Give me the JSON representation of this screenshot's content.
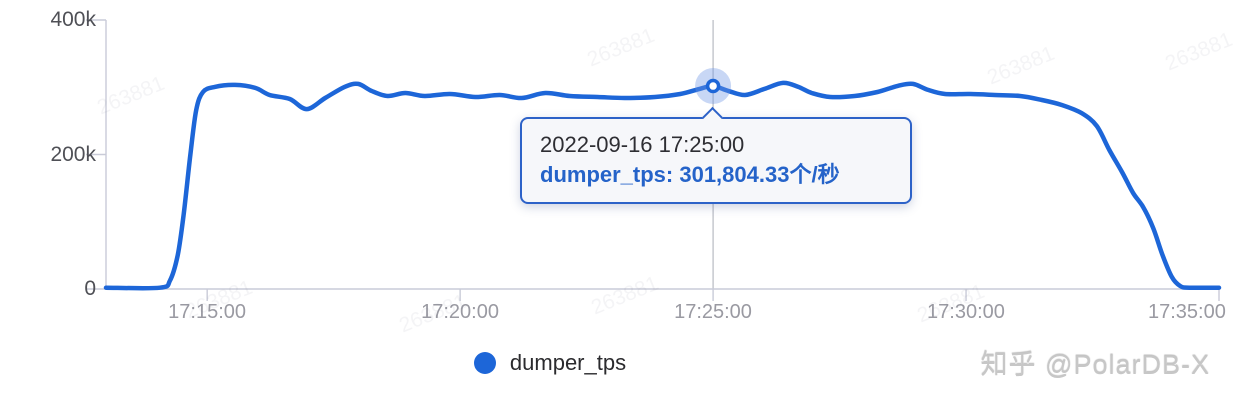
{
  "chart_data": {
    "type": "line",
    "title": "",
    "xlabel": "",
    "ylabel": "",
    "x_range": [
      "17:13:00",
      "17:35:00"
    ],
    "ylim": [
      0,
      400000
    ],
    "grid": false,
    "legend_position": "bottom",
    "x_tick_labels": [
      "17:15:00",
      "17:20:00",
      "17:25:00",
      "17:30:00",
      "17:35:00"
    ],
    "y_ticks": [
      {
        "label": "400k",
        "value": 400000
      },
      {
        "label": "200k",
        "value": 200000
      },
      {
        "label": "0",
        "value": 0
      }
    ],
    "series": [
      {
        "name": "dumper_tps",
        "unit": "个/秒",
        "color": "#1d66d8",
        "points": [
          [
            "17:13:00",
            2000
          ],
          [
            "17:14:04",
            2000
          ],
          [
            "17:14:16",
            13000
          ],
          [
            "17:14:25",
            50000
          ],
          [
            "17:14:32",
            110000
          ],
          [
            "17:14:40",
            199000
          ],
          [
            "17:14:47",
            266000
          ],
          [
            "17:14:55",
            293000
          ],
          [
            "17:15:09",
            300500
          ],
          [
            "17:15:33",
            303500
          ],
          [
            "17:15:57",
            299000
          ],
          [
            "17:16:14",
            288500
          ],
          [
            "17:16:38",
            282500
          ],
          [
            "17:16:58",
            267500
          ],
          [
            "17:17:20",
            284000
          ],
          [
            "17:17:43",
            300500
          ],
          [
            "17:17:59",
            305000
          ],
          [
            "17:18:15",
            294500
          ],
          [
            "17:18:34",
            287000
          ],
          [
            "17:18:55",
            291500
          ],
          [
            "17:19:18",
            287000
          ],
          [
            "17:19:48",
            290000
          ],
          [
            "17:20:18",
            285500
          ],
          [
            "17:20:47",
            288500
          ],
          [
            "17:21:13",
            284000
          ],
          [
            "17:21:41",
            291500
          ],
          [
            "17:22:10",
            287000
          ],
          [
            "17:22:43",
            285500
          ],
          [
            "17:23:15",
            284000
          ],
          [
            "17:23:51",
            285500
          ],
          [
            "17:24:21",
            290000
          ],
          [
            "17:24:44",
            297500
          ],
          [
            "17:25:00",
            301804.33
          ],
          [
            "17:25:18",
            294500
          ],
          [
            "17:25:38",
            288500
          ],
          [
            "17:26:01",
            297500
          ],
          [
            "17:26:23",
            306500
          ],
          [
            "17:26:41",
            300500
          ],
          [
            "17:26:57",
            291500
          ],
          [
            "17:27:19",
            285500
          ],
          [
            "17:27:48",
            287000
          ],
          [
            "17:28:15",
            293000
          ],
          [
            "17:28:39",
            302000
          ],
          [
            "17:28:57",
            305000
          ],
          [
            "17:29:15",
            296000
          ],
          [
            "17:29:35",
            290000
          ],
          [
            "17:30:05",
            290000
          ],
          [
            "17:30:34",
            288500
          ],
          [
            "17:31:04",
            287000
          ],
          [
            "17:31:30",
            281000
          ],
          [
            "17:31:54",
            273500
          ],
          [
            "17:32:17",
            261500
          ],
          [
            "17:32:35",
            242500
          ],
          [
            "17:32:50",
            206500
          ],
          [
            "17:33:05",
            174000
          ],
          [
            "17:33:18",
            143000
          ],
          [
            "17:33:30",
            122000
          ],
          [
            "17:33:42",
            90500
          ],
          [
            "17:33:53",
            50500
          ],
          [
            "17:34:04",
            18000
          ],
          [
            "17:34:14",
            4500
          ],
          [
            "17:34:25",
            2000
          ],
          [
            "17:35:00",
            2000
          ]
        ]
      }
    ]
  },
  "tooltip": {
    "datetime": "2022-09-16 17:25:00",
    "value_line": "dumper_tps: 301,804.33个/秒",
    "series": "dumper_tps",
    "time": "17:25:00",
    "value": 301804.33
  },
  "legend": {
    "label": "dumper_tps"
  },
  "watermarks": {
    "brand": "知乎 @PolarDB-X",
    "stamp": "263881"
  },
  "colors": {
    "line": "#1d66d8",
    "halo": "rgba(110,150,230,0.38)",
    "axis": "#c9cbd8",
    "crosshair": "#b7bac2",
    "tooltip_border": "#2d62c8",
    "tooltip_bg": "#f6f7fa",
    "tooltip_text": "#2e2e33",
    "tooltip_value": "#2563c9"
  }
}
